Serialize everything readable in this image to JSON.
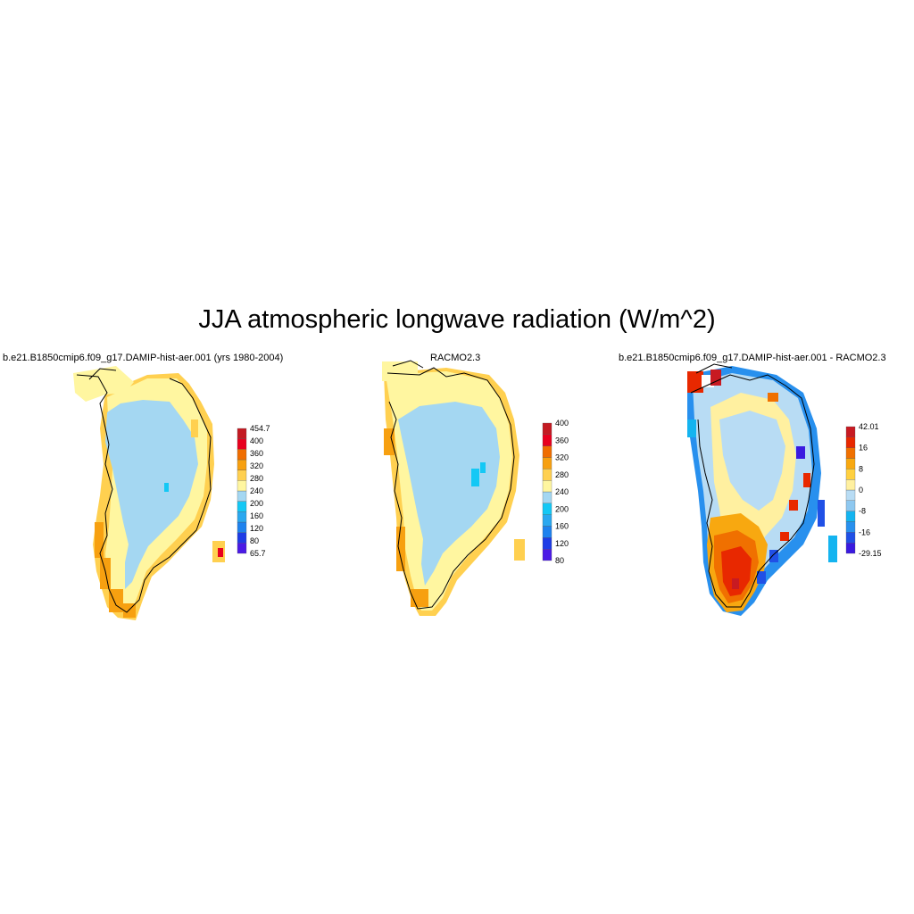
{
  "title": "JJA atmospheric longwave radiation (W/m^2)",
  "panels": [
    {
      "id": "model",
      "title": "b.e21.B1850cmip6.f09_g17.DAMIP-hist-aer.001 (yrs 1980-2004)",
      "colorbar": {
        "colors": [
          "#4b1ae6",
          "#1e3ce6",
          "#1e82ee",
          "#2aa8f0",
          "#14c8f5",
          "#a4d7f2",
          "#fff6a0",
          "#ffd050",
          "#f7a010",
          "#f06d00",
          "#e8001e",
          "#c41a22"
        ],
        "labels": [
          "454.7",
          "400",
          "360",
          "320",
          "280",
          "240",
          "200",
          "160",
          "120",
          "80",
          "65.7"
        ]
      }
    },
    {
      "id": "racmo",
      "title": "RACMO2.3",
      "colorbar": {
        "colors": [
          "#4b1ae6",
          "#1e3ce6",
          "#1e82ee",
          "#2aa8f0",
          "#14c8f5",
          "#a4d7f2",
          "#fff6a0",
          "#ffd050",
          "#f7a010",
          "#f06d00",
          "#e8001e",
          "#c41a22"
        ],
        "labels": [
          "400",
          "360",
          "320",
          "280",
          "240",
          "200",
          "160",
          "120",
          "80"
        ]
      }
    },
    {
      "id": "difference",
      "title": "b.e21.B1850cmip6.f09_g17.DAMIP-hist-aer.001 - RACMO2.3",
      "colorbar": {
        "colors": [
          "#3a1ae0",
          "#2050e6",
          "#2890ee",
          "#14b4f0",
          "#8ec8f0",
          "#b8dcf4",
          "#fff0a0",
          "#ffd040",
          "#f8a810",
          "#f07000",
          "#e82800",
          "#c81a22"
        ],
        "labels": [
          "42.01",
          "16",
          "8",
          "0",
          "-8",
          "-16",
          "-29.15"
        ]
      }
    }
  ]
}
